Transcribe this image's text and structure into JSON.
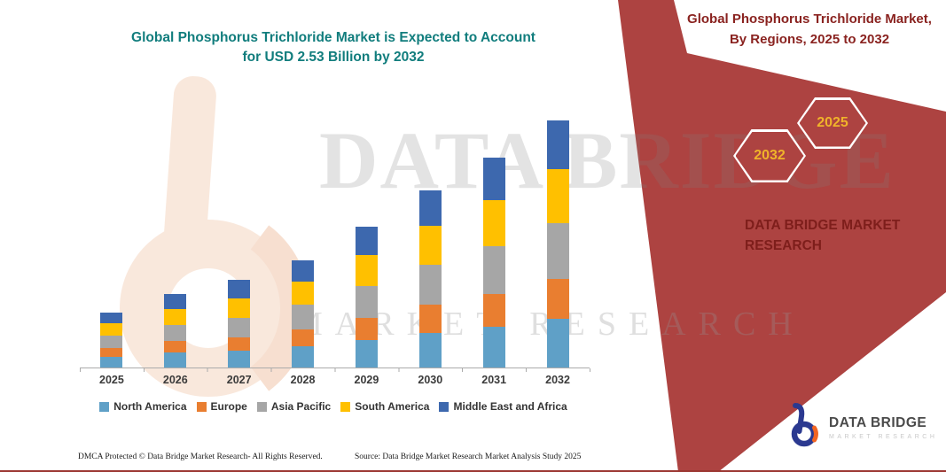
{
  "header": {
    "title_line1": "Global Phosphorus Trichloride Market is Expected to Account",
    "title_line2": "for USD 2.53 Billion by 2032"
  },
  "chart_data": {
    "type": "bar",
    "stacked": true,
    "title": "Global Phosphorus Trichloride Market is Expected to Account for USD 2.53 Billion by 2032",
    "unit": "USD Billion",
    "values_estimated_from_pixels": true,
    "categories": [
      "2025",
      "2026",
      "2027",
      "2028",
      "2029",
      "2030",
      "2031",
      "2032"
    ],
    "series": [
      {
        "name": "North America",
        "color": "#5FA0C7",
        "values": [
          0.11,
          0.15,
          0.17,
          0.22,
          0.28,
          0.35,
          0.42,
          0.5
        ]
      },
      {
        "name": "Europe",
        "color": "#E97E30",
        "values": [
          0.09,
          0.12,
          0.14,
          0.17,
          0.23,
          0.29,
          0.34,
          0.41
        ]
      },
      {
        "name": "Asia Pacific",
        "color": "#A6A6A6",
        "values": [
          0.13,
          0.16,
          0.2,
          0.25,
          0.33,
          0.41,
          0.49,
          0.57
        ]
      },
      {
        "name": "South America",
        "color": "#FFC000",
        "values": [
          0.13,
          0.16,
          0.2,
          0.24,
          0.32,
          0.4,
          0.47,
          0.55
        ]
      },
      {
        "name": "Middle East and Africa",
        "color": "#3D68AE",
        "values": [
          0.11,
          0.15,
          0.19,
          0.22,
          0.29,
          0.36,
          0.44,
          0.5
        ]
      }
    ],
    "totals_by_year": [
      0.57,
      0.74,
      0.9,
      1.1,
      1.45,
      1.81,
      2.16,
      2.53
    ],
    "ylim": [
      0,
      2.6
    ],
    "grid": false,
    "y_axis_visible": false,
    "legend_position": "bottom"
  },
  "sidebar": {
    "header": "Global Phosphorus Trichloride Market, By Regions, 2025 to 2032",
    "hexagons": [
      {
        "label": "2032"
      },
      {
        "label": "2025"
      }
    ],
    "brand_line1": "DATA BRIDGE MARKET",
    "brand_line2": "RESEARCH"
  },
  "watermark": {
    "line1": "DATA BRIDGE",
    "line2": "MARKET RESEARCH"
  },
  "logo": {
    "title": "DATA BRIDGE",
    "subtitle": "MARKET RESEARCH"
  },
  "footer": {
    "dmca": "DMCA Protected © Data Bridge Market Research-  All Rights Reserved.",
    "source": "Source: Data Bridge Market Research  Market Analysis Study 2025"
  },
  "colors": {
    "title_teal": "#117D7D",
    "band_red": "#AD4341",
    "dark_red_text": "#8A2320",
    "hexagon_year_gold": "#F0B32A",
    "logo_blue": "#2B3990",
    "logo_orange": "#F26522"
  }
}
